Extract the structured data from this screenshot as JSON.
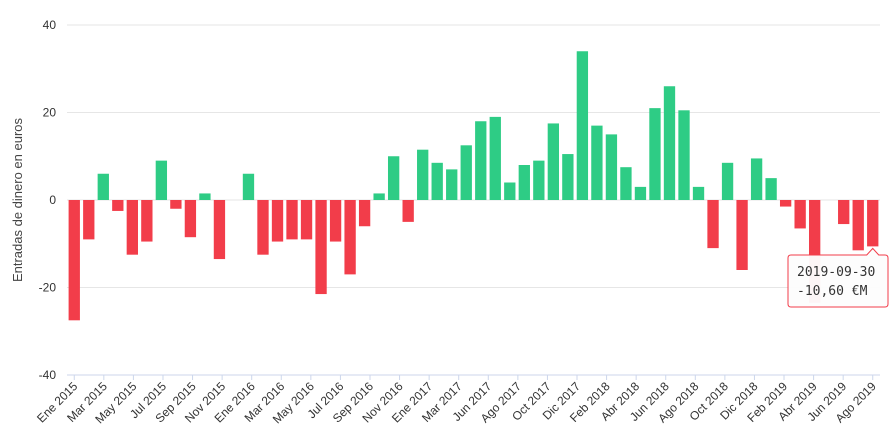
{
  "chart_data": {
    "type": "bar",
    "ylabel": "Entradas de dinero en euros",
    "ylim": [
      -40,
      40
    ],
    "yticks": [
      -40,
      -20,
      0,
      20,
      40
    ],
    "grid": true,
    "colors": {
      "positive": "#2ecc85",
      "negative": "#f23d4a",
      "grid": "#e6e6e6",
      "axis": "#ccd6eb"
    },
    "x_tick_labels": [
      "Ene 2015",
      "Mar 2015",
      "May 2015",
      "Jul 2015",
      "Sep 2015",
      "Nov 2015",
      "Ene 2016",
      "Mar 2016",
      "May 2016",
      "Jul 2016",
      "Sep 2016",
      "Nov 2016",
      "Ene 2017",
      "Mar 2017",
      "Jun 2017",
      "Ago 2017",
      "Oct 2017",
      "Dic 2017",
      "Feb 2018",
      "Abr 2018",
      "Jun 2018",
      "Ago 2018",
      "Oct 2018",
      "Dic 2018",
      "Feb 2019",
      "Abr 2019",
      "Jun 2019",
      "Ago 2019"
    ],
    "values": [
      -27.5,
      -9,
      6,
      -2.5,
      -12.5,
      -9.5,
      9,
      -2,
      -8.5,
      1.5,
      -13.5,
      0,
      6,
      -12.5,
      -9.5,
      -9,
      -9,
      -21.5,
      -9.5,
      -17,
      -6,
      1.5,
      10,
      -5,
      11.5,
      8.5,
      7,
      12.5,
      18,
      19,
      4,
      8,
      9,
      17.5,
      10.5,
      34,
      17,
      15,
      7.5,
      3,
      21,
      26,
      20.5,
      3,
      -11,
      8.5,
      -16,
      9.5,
      5,
      -1.5,
      -6.5,
      -23.5,
      0,
      -5.5,
      -11.5,
      -10.6
    ],
    "tooltip": {
      "date": "2019-09-30",
      "value": "-10,60 €M",
      "index": 55
    }
  }
}
